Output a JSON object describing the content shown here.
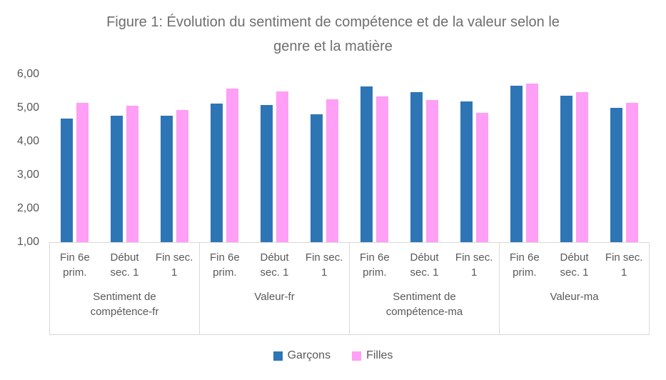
{
  "figure": {
    "title_line1": "Figure 1: Évolution du sentiment de compétence et de la valeur selon le",
    "title_line2": "genre et la matière"
  },
  "legend": {
    "items": [
      {
        "label": "Garçons",
        "color": "#2E75B6"
      },
      {
        "label": "Filles",
        "color": "#FF9FF5"
      }
    ]
  },
  "chart_data": {
    "type": "bar",
    "title": "Figure 1: Évolution du sentiment de compétence et de la valeur selon le genre et la matière",
    "ylabel": "",
    "xlabel": "",
    "ylim": [
      1,
      6
    ],
    "y_ticks": [
      "6,00",
      "5,00",
      "4,00",
      "3,00",
      "2,00",
      "1,00"
    ],
    "grid": false,
    "legend_position": "bottom",
    "groups": [
      "Sentiment de compétence-fr",
      "Valeur-fr",
      "Sentiment de compétence-ma",
      "Valeur-ma"
    ],
    "categories": [
      "Fin 6e prim.",
      "Début sec. 1",
      "Fin sec. 1"
    ],
    "series": [
      {
        "name": "Garçons",
        "color": "#2E75B6",
        "values": [
          [
            4.68,
            4.76,
            4.76
          ],
          [
            5.13,
            5.08,
            4.81
          ],
          [
            5.63,
            5.47,
            5.19
          ],
          [
            5.67,
            5.36,
            5.0
          ]
        ]
      },
      {
        "name": "Filles",
        "color": "#FF9FF5",
        "values": [
          [
            5.15,
            5.06,
            4.94
          ],
          [
            5.57,
            5.49,
            5.26
          ],
          [
            5.33,
            5.23,
            4.86
          ],
          [
            5.72,
            5.47,
            5.15
          ]
        ]
      }
    ]
  }
}
